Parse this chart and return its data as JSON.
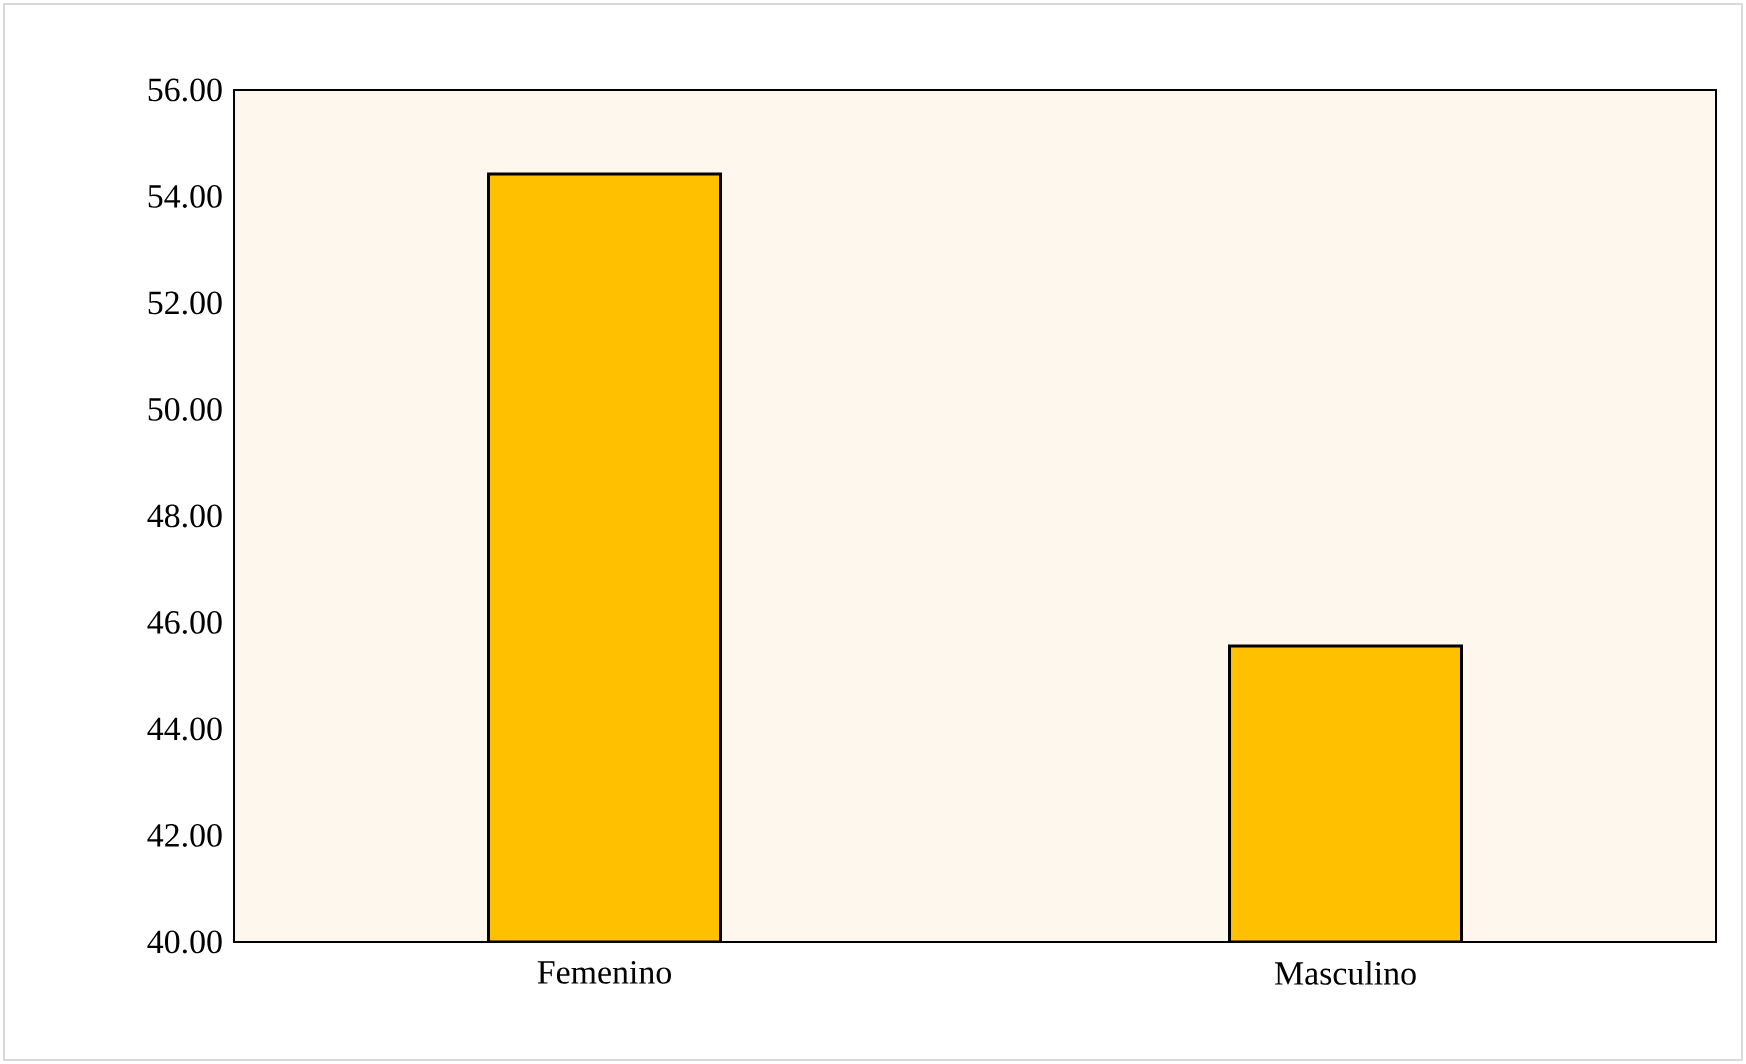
{
  "chart_data": {
    "type": "bar",
    "categories": [
      "Femenino",
      "Masculino"
    ],
    "values": [
      54.42,
      45.56
    ],
    "color": "#ffc000",
    "ylim": [
      40,
      56
    ],
    "yticks": [
      {
        "value": 40,
        "label": "40.00"
      },
      {
        "value": 42,
        "label": "42.00"
      },
      {
        "value": 44,
        "label": "44.00"
      },
      {
        "value": 46,
        "label": "46.00"
      },
      {
        "value": 48,
        "label": "48.00"
      },
      {
        "value": 50,
        "label": "50.00"
      },
      {
        "value": 52,
        "label": "52.00"
      },
      {
        "value": 54,
        "label": "54.00"
      },
      {
        "value": 56,
        "label": "56.00"
      }
    ],
    "grid": false
  }
}
